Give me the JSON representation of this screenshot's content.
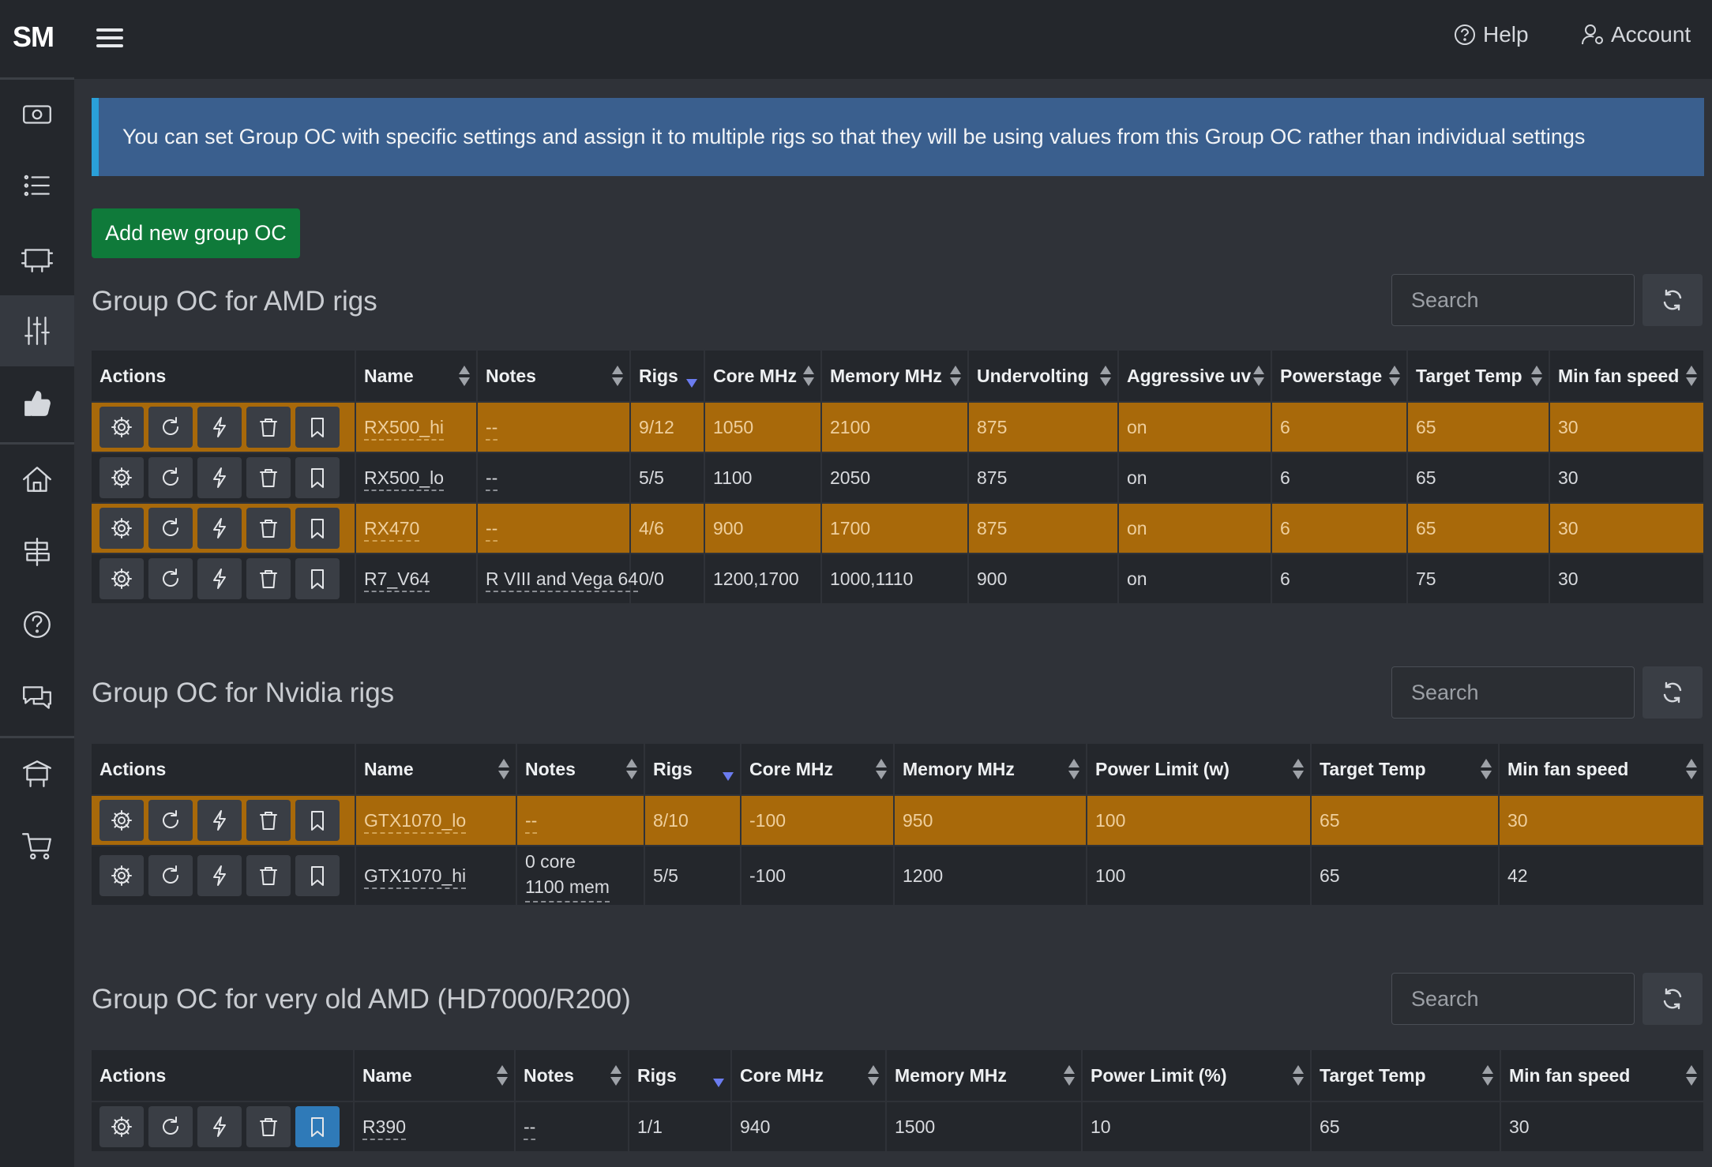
{
  "app": {
    "logo": "SM"
  },
  "topbar": {
    "help": "Help",
    "account": "Account"
  },
  "alert": {
    "text": "You can set Group OC with specific settings and assign it to multiple rigs so that they will be using values from this Group OC rather than individual settings"
  },
  "add_button": "Add new group OC",
  "search_placeholder": "Search",
  "amd": {
    "title": "Group OC for AMD rigs",
    "headers": [
      "Actions",
      "Name",
      "Notes",
      "Rigs",
      "Core MHz",
      "Memory MHz",
      "Undervolting",
      "Aggressive uv",
      "Powerstage",
      "Target Temp",
      "Min fan speed"
    ],
    "rows": [
      {
        "name": "RX500_hi",
        "notes": "--",
        "rigs": "9/12",
        "core": "1050",
        "memory": "2100",
        "uv": "875",
        "aggr": "on",
        "power": "6",
        "temp": "65",
        "fan": "30"
      },
      {
        "name": "RX500_lo",
        "notes": "--",
        "rigs": "5/5",
        "core": "1100",
        "memory": "2050",
        "uv": "875",
        "aggr": "on",
        "power": "6",
        "temp": "65",
        "fan": "30"
      },
      {
        "name": "RX470",
        "notes": "--",
        "rigs": "4/6",
        "core": "900",
        "memory": "1700",
        "uv": "875",
        "aggr": "on",
        "power": "6",
        "temp": "65",
        "fan": "30"
      },
      {
        "name": "R7_V64",
        "notes": "R VIII and Vega 64",
        "rigs": "0/0",
        "core": "1200,1700",
        "memory": "1000,1110",
        "uv": "900",
        "aggr": "on",
        "power": "6",
        "temp": "75",
        "fan": "30"
      }
    ]
  },
  "nvidia": {
    "title": "Group OC for Nvidia rigs",
    "headers": [
      "Actions",
      "Name",
      "Notes",
      "Rigs",
      "Core MHz",
      "Memory MHz",
      "Power Limit (w)",
      "Target Temp",
      "Min fan speed"
    ],
    "rows": [
      {
        "name": "GTX1070_lo",
        "notes": "--",
        "rigs": "8/10",
        "core": "-100",
        "memory": "950",
        "power": "100",
        "temp": "65",
        "fan": "30"
      },
      {
        "name": "GTX1070_hi",
        "notes_line1": "0 core",
        "notes_line2": "1100 mem",
        "rigs": "5/5",
        "core": "-100",
        "memory": "1200",
        "power": "100",
        "temp": "65",
        "fan": "42"
      }
    ]
  },
  "oldamd": {
    "title": "Group OC for very old AMD (HD7000/R200)",
    "headers": [
      "Actions",
      "Name",
      "Notes",
      "Rigs",
      "Core MHz",
      "Memory MHz",
      "Power Limit (%)",
      "Target Temp",
      "Min fan speed"
    ],
    "rows": [
      {
        "name": "R390",
        "notes": "--",
        "rigs": "1/1",
        "core": "940",
        "memory": "1500",
        "power": "10",
        "temp": "65",
        "fan": "30"
      }
    ]
  },
  "colors": {
    "highlight": "#a8690a",
    "alert": "#3a5f8e",
    "button": "#0f7a3a",
    "bookmark_active": "#2f7ab8"
  }
}
